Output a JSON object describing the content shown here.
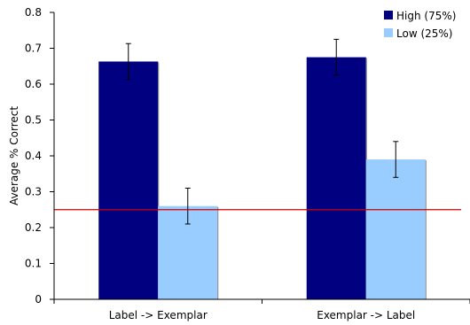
{
  "chart_data": {
    "type": "bar",
    "title": "",
    "xlabel": "",
    "ylabel": "Average % Correct",
    "ylim": [
      0,
      0.8
    ],
    "yticks": [
      0,
      0.1,
      0.2,
      0.3,
      0.4,
      0.5,
      0.6,
      0.7,
      0.8
    ],
    "ytick_labels": [
      "0",
      "0.1",
      "0.2",
      "0.3",
      "0.4",
      "0.5",
      "0.6",
      "0.7",
      "0.8"
    ],
    "categories": [
      "Label -> Exemplar",
      "Exemplar -> Label"
    ],
    "series": [
      {
        "name": "High (75%)",
        "color": "#000080",
        "values": [
          0.663,
          0.675
        ],
        "error": [
          0.05,
          0.05
        ]
      },
      {
        "name": "Low (25%)",
        "color": "#99ccff",
        "values": [
          0.26,
          0.39
        ],
        "error": [
          0.05,
          0.05
        ]
      }
    ],
    "reference_line": {
      "value": 0.25,
      "color": "#cc0000"
    },
    "legend_position": "top-right",
    "grid": false
  }
}
